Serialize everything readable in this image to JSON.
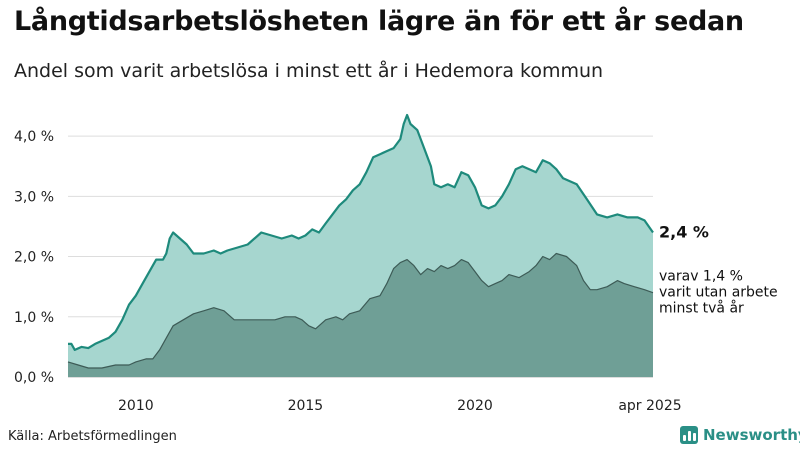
{
  "title": "Långtidsarbetslösheten lägre än för ett år sedan",
  "subtitle": "Andel som varit arbetslösa i minst ett år i Hedemora kommun",
  "source": "Källa: Arbetsförmedlingen",
  "brand": {
    "name": "Newsworthy",
    "icon": "bar-chart-icon"
  },
  "colors": {
    "total_fill": "#a6d6cf",
    "total_line": "#1e8a7c",
    "sub_fill": "#6f9f96",
    "sub_line": "#3d5b56",
    "grid": "#dddddd",
    "brand": "#2a8f86"
  },
  "chart_data": {
    "type": "area",
    "x_range": [
      2008.0,
      2025.25
    ],
    "ylim": [
      0,
      4.4
    ],
    "y_ticks": [
      {
        "value": 0,
        "label": "0,0 %"
      },
      {
        "value": 1,
        "label": "1,0 %"
      },
      {
        "value": 2,
        "label": "2,0 %"
      },
      {
        "value": 3,
        "label": "3,0 %"
      },
      {
        "value": 4,
        "label": "4,0 %"
      }
    ],
    "x_ticks": [
      {
        "value": 2010,
        "label": "2010"
      },
      {
        "value": 2015,
        "label": "2015"
      },
      {
        "value": 2020,
        "label": "2020"
      },
      {
        "value": 2025.25,
        "label": "apr 2025"
      }
    ],
    "grid": "horizontal",
    "series": [
      {
        "name": "Arbetslösa minst ett år",
        "end_label": "2,4 %",
        "points": [
          [
            2008.0,
            0.55
          ],
          [
            2008.1,
            0.55
          ],
          [
            2008.2,
            0.45
          ],
          [
            2008.4,
            0.5
          ],
          [
            2008.6,
            0.48
          ],
          [
            2008.8,
            0.55
          ],
          [
            2009.0,
            0.6
          ],
          [
            2009.2,
            0.65
          ],
          [
            2009.4,
            0.75
          ],
          [
            2009.6,
            0.95
          ],
          [
            2009.8,
            1.2
          ],
          [
            2010.0,
            1.35
          ],
          [
            2010.2,
            1.55
          ],
          [
            2010.4,
            1.75
          ],
          [
            2010.6,
            1.95
          ],
          [
            2010.8,
            1.95
          ],
          [
            2010.9,
            2.05
          ],
          [
            2011.0,
            2.3
          ],
          [
            2011.1,
            2.4
          ],
          [
            2011.3,
            2.3
          ],
          [
            2011.5,
            2.2
          ],
          [
            2011.7,
            2.05
          ],
          [
            2012.0,
            2.05
          ],
          [
            2012.3,
            2.1
          ],
          [
            2012.5,
            2.05
          ],
          [
            2012.7,
            2.1
          ],
          [
            2013.0,
            2.15
          ],
          [
            2013.3,
            2.2
          ],
          [
            2013.5,
            2.3
          ],
          [
            2013.7,
            2.4
          ],
          [
            2014.0,
            2.35
          ],
          [
            2014.3,
            2.3
          ],
          [
            2014.6,
            2.35
          ],
          [
            2014.8,
            2.3
          ],
          [
            2015.0,
            2.35
          ],
          [
            2015.2,
            2.45
          ],
          [
            2015.4,
            2.4
          ],
          [
            2015.6,
            2.55
          ],
          [
            2015.8,
            2.7
          ],
          [
            2016.0,
            2.85
          ],
          [
            2016.2,
            2.95
          ],
          [
            2016.4,
            3.1
          ],
          [
            2016.6,
            3.2
          ],
          [
            2016.8,
            3.4
          ],
          [
            2017.0,
            3.65
          ],
          [
            2017.2,
            3.7
          ],
          [
            2017.4,
            3.75
          ],
          [
            2017.6,
            3.8
          ],
          [
            2017.8,
            3.95
          ],
          [
            2017.9,
            4.2
          ],
          [
            2018.0,
            4.35
          ],
          [
            2018.1,
            4.2
          ],
          [
            2018.3,
            4.1
          ],
          [
            2018.5,
            3.8
          ],
          [
            2018.7,
            3.5
          ],
          [
            2018.8,
            3.2
          ],
          [
            2019.0,
            3.15
          ],
          [
            2019.2,
            3.2
          ],
          [
            2019.4,
            3.15
          ],
          [
            2019.6,
            3.4
          ],
          [
            2019.8,
            3.35
          ],
          [
            2020.0,
            3.15
          ],
          [
            2020.2,
            2.85
          ],
          [
            2020.4,
            2.8
          ],
          [
            2020.6,
            2.85
          ],
          [
            2020.8,
            3.0
          ],
          [
            2021.0,
            3.2
          ],
          [
            2021.2,
            3.45
          ],
          [
            2021.4,
            3.5
          ],
          [
            2021.6,
            3.45
          ],
          [
            2021.8,
            3.4
          ],
          [
            2022.0,
            3.6
          ],
          [
            2022.2,
            3.55
          ],
          [
            2022.4,
            3.45
          ],
          [
            2022.6,
            3.3
          ],
          [
            2022.8,
            3.25
          ],
          [
            2023.0,
            3.2
          ],
          [
            2023.3,
            2.95
          ],
          [
            2023.6,
            2.7
          ],
          [
            2023.9,
            2.65
          ],
          [
            2024.2,
            2.7
          ],
          [
            2024.5,
            2.65
          ],
          [
            2024.8,
            2.65
          ],
          [
            2025.0,
            2.6
          ],
          [
            2025.25,
            2.4
          ]
        ]
      },
      {
        "name": "varav utan arbete minst två år",
        "end_label": [
          "varav 1,4 %",
          "varit utan arbete",
          "minst två år"
        ],
        "points": [
          [
            2008.0,
            0.25
          ],
          [
            2008.3,
            0.2
          ],
          [
            2008.6,
            0.15
          ],
          [
            2009.0,
            0.15
          ],
          [
            2009.4,
            0.2
          ],
          [
            2009.8,
            0.2
          ],
          [
            2010.0,
            0.25
          ],
          [
            2010.3,
            0.3
          ],
          [
            2010.5,
            0.3
          ],
          [
            2010.7,
            0.45
          ],
          [
            2010.9,
            0.65
          ],
          [
            2011.1,
            0.85
          ],
          [
            2011.4,
            0.95
          ],
          [
            2011.7,
            1.05
          ],
          [
            2012.0,
            1.1
          ],
          [
            2012.3,
            1.15
          ],
          [
            2012.6,
            1.1
          ],
          [
            2012.9,
            0.95
          ],
          [
            2013.2,
            0.95
          ],
          [
            2013.5,
            0.95
          ],
          [
            2013.8,
            0.95
          ],
          [
            2014.1,
            0.95
          ],
          [
            2014.4,
            1.0
          ],
          [
            2014.7,
            1.0
          ],
          [
            2014.9,
            0.95
          ],
          [
            2015.1,
            0.85
          ],
          [
            2015.3,
            0.8
          ],
          [
            2015.6,
            0.95
          ],
          [
            2015.9,
            1.0
          ],
          [
            2016.1,
            0.95
          ],
          [
            2016.3,
            1.05
          ],
          [
            2016.6,
            1.1
          ],
          [
            2016.9,
            1.3
          ],
          [
            2017.2,
            1.35
          ],
          [
            2017.4,
            1.55
          ],
          [
            2017.6,
            1.8
          ],
          [
            2017.8,
            1.9
          ],
          [
            2018.0,
            1.95
          ],
          [
            2018.2,
            1.85
          ],
          [
            2018.4,
            1.7
          ],
          [
            2018.6,
            1.8
          ],
          [
            2018.8,
            1.75
          ],
          [
            2019.0,
            1.85
          ],
          [
            2019.2,
            1.8
          ],
          [
            2019.4,
            1.85
          ],
          [
            2019.6,
            1.95
          ],
          [
            2019.8,
            1.9
          ],
          [
            2020.0,
            1.75
          ],
          [
            2020.2,
            1.6
          ],
          [
            2020.4,
            1.5
          ],
          [
            2020.6,
            1.55
          ],
          [
            2020.8,
            1.6
          ],
          [
            2021.0,
            1.7
          ],
          [
            2021.3,
            1.65
          ],
          [
            2021.6,
            1.75
          ],
          [
            2021.8,
            1.85
          ],
          [
            2022.0,
            2.0
          ],
          [
            2022.2,
            1.95
          ],
          [
            2022.4,
            2.05
          ],
          [
            2022.7,
            2.0
          ],
          [
            2023.0,
            1.85
          ],
          [
            2023.2,
            1.6
          ],
          [
            2023.4,
            1.45
          ],
          [
            2023.6,
            1.45
          ],
          [
            2023.9,
            1.5
          ],
          [
            2024.2,
            1.6
          ],
          [
            2024.4,
            1.55
          ],
          [
            2024.7,
            1.5
          ],
          [
            2025.0,
            1.45
          ],
          [
            2025.25,
            1.4
          ]
        ]
      }
    ]
  }
}
